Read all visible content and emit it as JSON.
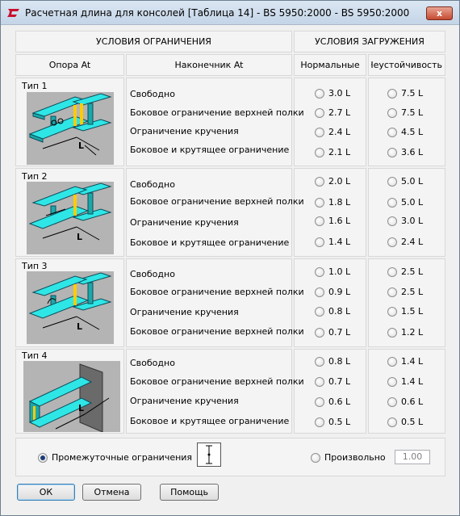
{
  "window": {
    "title": "Расчетная длина для консолей [Таблица 14] - BS 5950:2000 - BS 5950:2000",
    "close_label": "x"
  },
  "headers": {
    "restraint_conditions": "УСЛОВИЯ ОГРАНИЧЕНИЯ",
    "loading_conditions": "УСЛОВИЯ ЗАГРУЖЕНИЯ",
    "support": "Опора At",
    "tip": "Наконечник At",
    "normal": "Нормальные",
    "destabilizing": "Неустойчивость"
  },
  "types": [
    {
      "label": "Тип 1",
      "restraints": [
        "Свободно",
        "Боковое ограничение верхней полки",
        "Ограничение кручения",
        "Боковое и крутящее ограничение"
      ],
      "normal": [
        "3.0 L",
        "2.7 L",
        "2.4 L",
        "2.1 L"
      ],
      "destabilizing": [
        "7.5 L",
        "7.5 L",
        "4.5 L",
        "3.6 L"
      ]
    },
    {
      "label": "Тип 2",
      "restraints": [
        "Свободно",
        "Боковое ограничение верхней полки",
        "Ограничение кручения",
        "Боковое и крутящее ограничение"
      ],
      "normal": [
        "2.0 L",
        "1.8 L",
        "1.6 L",
        "1.4 L"
      ],
      "destabilizing": [
        "5.0 L",
        "5.0 L",
        "3.0 L",
        "2.4 L"
      ]
    },
    {
      "label": "Тип 3",
      "restraints": [
        "Свободно",
        "Боковое ограничение верхней полки",
        "Ограничение кручения",
        "Боковое ограничение верхней полки"
      ],
      "normal": [
        "1.0 L",
        "0.9 L",
        "0.8 L",
        "0.7 L"
      ],
      "destabilizing": [
        "2.5 L",
        "2.5 L",
        "1.5 L",
        "1.2 L"
      ]
    },
    {
      "label": "Тип 4",
      "restraints": [
        "Свободно",
        "Боковое ограничение верхней полки",
        "Ограничение кручения",
        "Боковое и крутящее ограничение"
      ],
      "normal": [
        "0.8 L",
        "0.7 L",
        "0.6 L",
        "0.5 L"
      ],
      "destabilizing": [
        "1.4 L",
        "1.4 L",
        "0.6 L",
        "0.5 L"
      ]
    }
  ],
  "bottom": {
    "intermediate_label": "Промежуточные ограничения",
    "arbitrary_label": "Произвольно",
    "arbitrary_value": "1.00"
  },
  "buttons": {
    "ok": "ОК",
    "cancel": "Отмена",
    "help": "Помощь"
  },
  "dimension_letter": "L",
  "colors": {
    "beam": "#2ee6e6",
    "beam_edge": "#0e4d5a",
    "image_bg": "#b4b4b4",
    "plate": "#6a6a6a"
  }
}
